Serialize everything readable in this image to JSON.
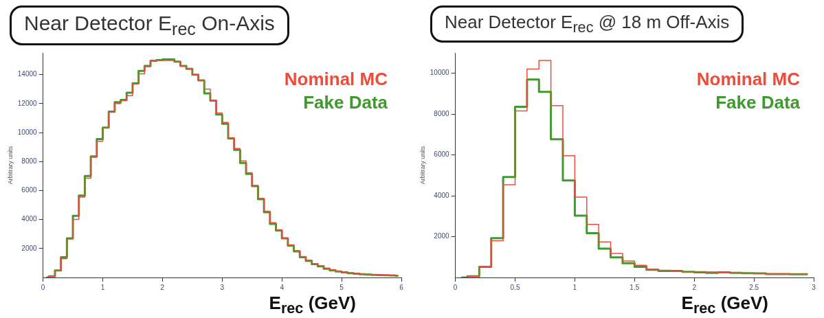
{
  "chart_data": [
    {
      "type": "step",
      "title": "Near Detector E$_{rec}$ On-Axis",
      "xlabel": "E$_{rec}$ (GeV)",
      "ylabel": "Arbitrary units",
      "legend": "top right",
      "grid": false,
      "x": [
        0.05,
        0.15,
        0.25,
        0.35,
        0.45,
        0.55,
        0.65,
        0.75,
        0.85,
        0.95,
        1.05,
        1.15,
        1.25,
        1.35,
        1.45,
        1.55,
        1.65,
        1.75,
        1.85,
        1.95,
        2.05,
        2.15,
        2.25,
        2.35,
        2.45,
        2.55,
        2.65,
        2.75,
        2.85,
        2.95,
        3.05,
        3.15,
        3.25,
        3.35,
        3.45,
        3.55,
        3.65,
        3.75,
        3.85,
        3.95,
        4.05,
        4.15,
        4.25,
        4.35,
        4.45,
        4.55,
        4.65,
        4.75,
        4.85,
        4.95,
        5.05,
        5.15,
        5.25,
        5.35,
        5.45,
        5.55,
        5.65,
        5.75,
        5.85,
        5.95
      ],
      "series": [
        {
          "name": "Nominal MC",
          "color": "#ef4b3a",
          "values": [
            0,
            80,
            480,
            1300,
            2650,
            4000,
            5550,
            6850,
            8300,
            9400,
            10350,
            11400,
            12000,
            12200,
            12550,
            13350,
            14050,
            14550,
            14950,
            14980,
            14980,
            14980,
            14900,
            14600,
            14400,
            14000,
            13600,
            13000,
            12200,
            11350,
            10700,
            9650,
            8900,
            8050,
            7230,
            6350,
            5460,
            4580,
            3780,
            3300,
            2730,
            2250,
            1850,
            1450,
            1200,
            960,
            800,
            640,
            530,
            430,
            370,
            320,
            270,
            240,
            210,
            190,
            180,
            160,
            150,
            130
          ]
        },
        {
          "name": "Fake Data",
          "color": "#3f9a2e",
          "values": [
            0,
            80,
            480,
            1400,
            2700,
            4250,
            5650,
            7000,
            8350,
            9550,
            10350,
            11450,
            12100,
            12250,
            12750,
            13400,
            14250,
            14600,
            14950,
            15000,
            15050,
            15050,
            14900,
            14600,
            14400,
            14000,
            13600,
            12700,
            12200,
            11250,
            10600,
            9600,
            8800,
            7900,
            7150,
            6300,
            5400,
            4500,
            3700,
            3250,
            2700,
            2200,
            1800,
            1400,
            1150,
            920,
            770,
            610,
            500,
            410,
            350,
            300,
            260,
            230,
            200,
            180,
            170,
            150,
            140,
            120
          ]
        }
      ],
      "xlim": [
        0,
        6
      ],
      "xticks": [
        0,
        1,
        2,
        3,
        4,
        5,
        6
      ],
      "ylim": [
        0,
        15500
      ],
      "yticks": [
        2000,
        4000,
        6000,
        8000,
        10000,
        12000,
        14000
      ]
    },
    {
      "type": "step",
      "title": "Near Detector E$_{rec}$ @ 18 m Off-Axis",
      "xlabel": "E$_{rec}$ (GeV)",
      "ylabel": "Arbitrary units",
      "legend": "top right",
      "grid": false,
      "x": [
        0.05,
        0.15,
        0.25,
        0.35,
        0.45,
        0.55,
        0.65,
        0.75,
        0.85,
        0.95,
        1.05,
        1.15,
        1.25,
        1.35,
        1.45,
        1.55,
        1.65,
        1.75,
        1.85,
        1.95,
        2.05,
        2.15,
        2.25,
        2.35,
        2.45,
        2.55,
        2.65,
        2.75,
        2.85,
        2.95
      ],
      "series": [
        {
          "name": "Nominal MC",
          "color": "#ef4b3a",
          "values": [
            0,
            60,
            520,
            1800,
            4540,
            8160,
            10210,
            10630,
            8420,
            5960,
            3940,
            2600,
            1740,
            1180,
            810,
            600,
            400,
            350,
            300,
            280,
            290,
            270,
            250,
            230,
            210,
            200,
            170,
            170,
            160,
            160
          ]
        },
        {
          "name": "Fake Data",
          "color": "#3f9a2e",
          "values": [
            0,
            60,
            520,
            1930,
            4920,
            8360,
            9700,
            9090,
            6770,
            4750,
            3030,
            2170,
            1410,
            980,
            700,
            520,
            380,
            320,
            320,
            280,
            250,
            230,
            250,
            230,
            210,
            200,
            170,
            170,
            160,
            160
          ]
        }
      ],
      "xlim": [
        0,
        3
      ],
      "xticks": [
        0,
        0.5,
        1,
        1.5,
        2,
        2.5,
        3
      ],
      "ylim": [
        0,
        11000
      ],
      "yticks": [
        2000,
        4000,
        6000,
        8000,
        10000
      ]
    }
  ]
}
